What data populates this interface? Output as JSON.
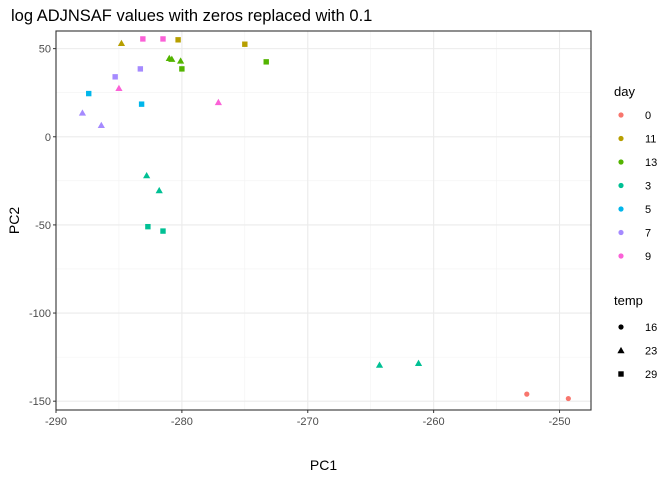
{
  "chart_data": {
    "type": "scatter",
    "title": "log ADJNSAF values with zeros replaced with 0.1",
    "xlabel": "PC1",
    "ylabel": "PC2",
    "xlim": [
      -290,
      -247.5
    ],
    "ylim": [
      -155,
      60
    ],
    "x_ticks": [
      -290,
      -280,
      -270,
      -260,
      -250
    ],
    "y_ticks": [
      -150,
      -100,
      -50,
      0,
      50
    ],
    "grid": true,
    "legend_position": "right",
    "legends": {
      "color": {
        "title": "day",
        "entries": [
          {
            "label": "0",
            "color": "#F8766D"
          },
          {
            "label": "11",
            "color": "#B79F00"
          },
          {
            "label": "13",
            "color": "#53B400"
          },
          {
            "label": "3",
            "color": "#00C094"
          },
          {
            "label": "5",
            "color": "#00B6EB"
          },
          {
            "label": "7",
            "color": "#A58AFF"
          },
          {
            "label": "9",
            "color": "#FB61D7"
          }
        ]
      },
      "shape": {
        "title": "temp",
        "entries": [
          {
            "label": "16",
            "shape": "circle"
          },
          {
            "label": "23",
            "shape": "triangle"
          },
          {
            "label": "29",
            "shape": "square"
          }
        ]
      }
    },
    "points": [
      {
        "x": -252.6,
        "y": -146,
        "day": "0",
        "temp": "16"
      },
      {
        "x": -249.3,
        "y": -148.5,
        "day": "0",
        "temp": "16"
      },
      {
        "x": -284.8,
        "y": 53,
        "day": "11",
        "temp": "23"
      },
      {
        "x": -280.3,
        "y": 55,
        "day": "11",
        "temp": "29"
      },
      {
        "x": -275,
        "y": 52.5,
        "day": "11",
        "temp": "29"
      },
      {
        "x": -281,
        "y": 44.5,
        "day": "13",
        "temp": "23"
      },
      {
        "x": -280.8,
        "y": 44,
        "day": "13",
        "temp": "23"
      },
      {
        "x": -280.1,
        "y": 43,
        "day": "13",
        "temp": "23"
      },
      {
        "x": -280,
        "y": 38.5,
        "day": "13",
        "temp": "29"
      },
      {
        "x": -273.3,
        "y": 42.5,
        "day": "13",
        "temp": "29"
      },
      {
        "x": -282.8,
        "y": -22,
        "day": "3",
        "temp": "23"
      },
      {
        "x": -281.8,
        "y": -30.5,
        "day": "3",
        "temp": "23"
      },
      {
        "x": -282.7,
        "y": -51,
        "day": "3",
        "temp": "29"
      },
      {
        "x": -281.5,
        "y": -53.5,
        "day": "3",
        "temp": "29"
      },
      {
        "x": -264.3,
        "y": -129.5,
        "day": "3",
        "temp": "23"
      },
      {
        "x": -261.2,
        "y": -128.5,
        "day": "3",
        "temp": "23"
      },
      {
        "x": -287.4,
        "y": 24.5,
        "day": "5",
        "temp": "29"
      },
      {
        "x": -283.2,
        "y": 18.5,
        "day": "5",
        "temp": "29"
      },
      {
        "x": -287.9,
        "y": 13.5,
        "day": "7",
        "temp": "23"
      },
      {
        "x": -286.4,
        "y": 6.5,
        "day": "7",
        "temp": "23"
      },
      {
        "x": -285.3,
        "y": 34,
        "day": "7",
        "temp": "29"
      },
      {
        "x": -283.3,
        "y": 38.5,
        "day": "7",
        "temp": "29"
      },
      {
        "x": -283.1,
        "y": 55.5,
        "day": "9",
        "temp": "29"
      },
      {
        "x": -281.5,
        "y": 55.5,
        "day": "9",
        "temp": "29"
      },
      {
        "x": -285,
        "y": 27.5,
        "day": "9",
        "temp": "23"
      },
      {
        "x": -277.1,
        "y": 19.5,
        "day": "9",
        "temp": "23"
      }
    ]
  }
}
